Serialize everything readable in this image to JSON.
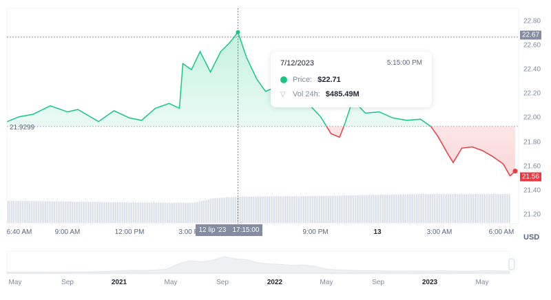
{
  "chart_data": {
    "type": "line",
    "currency": "USD",
    "baseline_value": 21.9299,
    "baseline_label": "21.9299",
    "ylim": [
      21.2,
      22.8
    ],
    "y_ticks": [
      "22.80",
      "22.60",
      "22.40",
      "22.20",
      "22.00",
      "21.80",
      "21.60",
      "21.40",
      "21.20"
    ],
    "x_ticks": [
      {
        "label": "6:40 AM",
        "t": "2023-07-12T06:40",
        "bold": false
      },
      {
        "label": "9:00 AM",
        "t": "2023-07-12T09:00",
        "bold": false
      },
      {
        "label": "12:00 PM",
        "t": "2023-07-12T12:00",
        "bold": false
      },
      {
        "label": "3:00 PM",
        "t": "2023-07-12T15:00",
        "bold": false
      },
      {
        "label": "9:00 PM",
        "t": "2023-07-12T21:00",
        "bold": false
      },
      {
        "label": "13",
        "t": "2023-07-13T00:00",
        "bold": true
      },
      {
        "label": "3:00 AM",
        "t": "2023-07-13T03:00",
        "bold": false
      },
      {
        "label": "6:00 AM",
        "t": "2023-07-13T06:00",
        "bold": false
      }
    ],
    "colors": {
      "up": "#16c784",
      "down": "#ea3943",
      "crosshair_tag": "#858ca2",
      "volume": "#cfd6e4"
    },
    "grid": false,
    "price_series": [
      [
        "2023-07-12T06:05",
        21.97
      ],
      [
        "2023-07-12T06:40",
        22.01
      ],
      [
        "2023-07-12T07:20",
        22.03
      ],
      [
        "2023-07-12T08:10",
        22.1
      ],
      [
        "2023-07-12T09:00",
        22.05
      ],
      [
        "2023-07-12T09:30",
        22.07
      ],
      [
        "2023-07-12T10:00",
        22.02
      ],
      [
        "2023-07-12T10:30",
        21.97
      ],
      [
        "2023-07-12T11:15",
        22.06
      ],
      [
        "2023-07-12T12:00",
        22.0
      ],
      [
        "2023-07-12T12:35",
        21.98
      ],
      [
        "2023-07-12T13:15",
        22.08
      ],
      [
        "2023-07-12T13:55",
        22.12
      ],
      [
        "2023-07-12T14:25",
        22.08
      ],
      [
        "2023-07-12T14:35",
        22.45
      ],
      [
        "2023-07-12T15:00",
        22.4
      ],
      [
        "2023-07-12T15:25",
        22.55
      ],
      [
        "2023-07-12T15:55",
        22.38
      ],
      [
        "2023-07-12T16:25",
        22.55
      ],
      [
        "2023-07-12T16:50",
        22.62
      ],
      [
        "2023-07-12T17:15",
        22.71
      ],
      [
        "2023-07-12T17:40",
        22.5
      ],
      [
        "2023-07-12T18:10",
        22.32
      ],
      [
        "2023-07-12T18:35",
        22.22
      ],
      [
        "2023-07-12T19:00",
        22.25
      ],
      [
        "2023-07-12T19:15",
        22.3
      ],
      [
        "2023-07-12T19:45",
        22.28
      ],
      [
        "2023-07-12T20:15",
        22.2
      ],
      [
        "2023-07-12T20:45",
        22.1
      ],
      [
        "2023-07-12T21:15",
        22.01
      ],
      [
        "2023-07-12T21:45",
        21.87
      ],
      [
        "2023-07-12T22:10",
        21.84
      ],
      [
        "2023-07-12T22:25",
        21.95
      ],
      [
        "2023-07-12T22:45",
        22.12
      ],
      [
        "2023-07-12T23:05",
        22.1
      ],
      [
        "2023-07-12T23:25",
        22.04
      ],
      [
        "2023-07-13T00:05",
        22.05
      ],
      [
        "2023-07-13T00:45",
        22.0
      ],
      [
        "2023-07-13T01:25",
        21.98
      ],
      [
        "2023-07-13T02:05",
        21.99
      ],
      [
        "2023-07-13T02:35",
        21.93
      ],
      [
        "2023-07-13T02:55",
        21.85
      ],
      [
        "2023-07-13T03:25",
        21.7
      ],
      [
        "2023-07-13T03:40",
        21.63
      ],
      [
        "2023-07-13T04:05",
        21.75
      ],
      [
        "2023-07-13T04:35",
        21.76
      ],
      [
        "2023-07-13T05:05",
        21.73
      ],
      [
        "2023-07-13T05:35",
        21.68
      ],
      [
        "2023-07-13T06:05",
        21.62
      ],
      [
        "2023-07-13T06:25",
        21.52
      ],
      [
        "2023-07-13T06:40",
        21.56
      ]
    ],
    "volume_24h_millions": [
      472,
      471,
      470,
      469,
      468,
      467,
      466,
      466,
      465,
      465,
      480,
      484,
      485,
      486,
      486,
      487,
      488,
      490,
      491,
      492,
      493,
      493,
      493,
      493,
      493
    ],
    "current_price_label": "21.56",
    "hover": {
      "price_label": "22.67",
      "date": "7/12/2023",
      "time": "5:15:00 PM",
      "price_key": "Price:",
      "price_value": "$22.71",
      "vol_key": "Vol 24h:",
      "vol_value": "$485.49M",
      "axis_date": "12 lip '23",
      "axis_time": "17:15:00",
      "t": "2023-07-12T17:15"
    },
    "navigator": {
      "labels": [
        {
          "label": "May",
          "bold": false
        },
        {
          "label": "Sep",
          "bold": false
        },
        {
          "label": "2021",
          "bold": true
        },
        {
          "label": "May",
          "bold": false
        },
        {
          "label": "Sep",
          "bold": false
        },
        {
          "label": "2022",
          "bold": true
        },
        {
          "label": "May",
          "bold": false
        },
        {
          "label": "Sep",
          "bold": false
        },
        {
          "label": "2023",
          "bold": true
        },
        {
          "label": "May",
          "bold": false
        }
      ],
      "relative_values": [
        0.05,
        0.05,
        0.05,
        0.06,
        0.05,
        0.05,
        0.06,
        0.06,
        0.07,
        0.09,
        0.12,
        0.14,
        0.13,
        0.15,
        0.2,
        0.45,
        0.6,
        0.55,
        0.62,
        0.8,
        0.7,
        0.65,
        0.5,
        0.45,
        0.42,
        0.38,
        0.4,
        0.32,
        0.2,
        0.16,
        0.14,
        0.12,
        0.12,
        0.11,
        0.1,
        0.1,
        0.11,
        0.1,
        0.12,
        0.1,
        0.09,
        0.1,
        0.12,
        0.11,
        0.1
      ]
    }
  }
}
